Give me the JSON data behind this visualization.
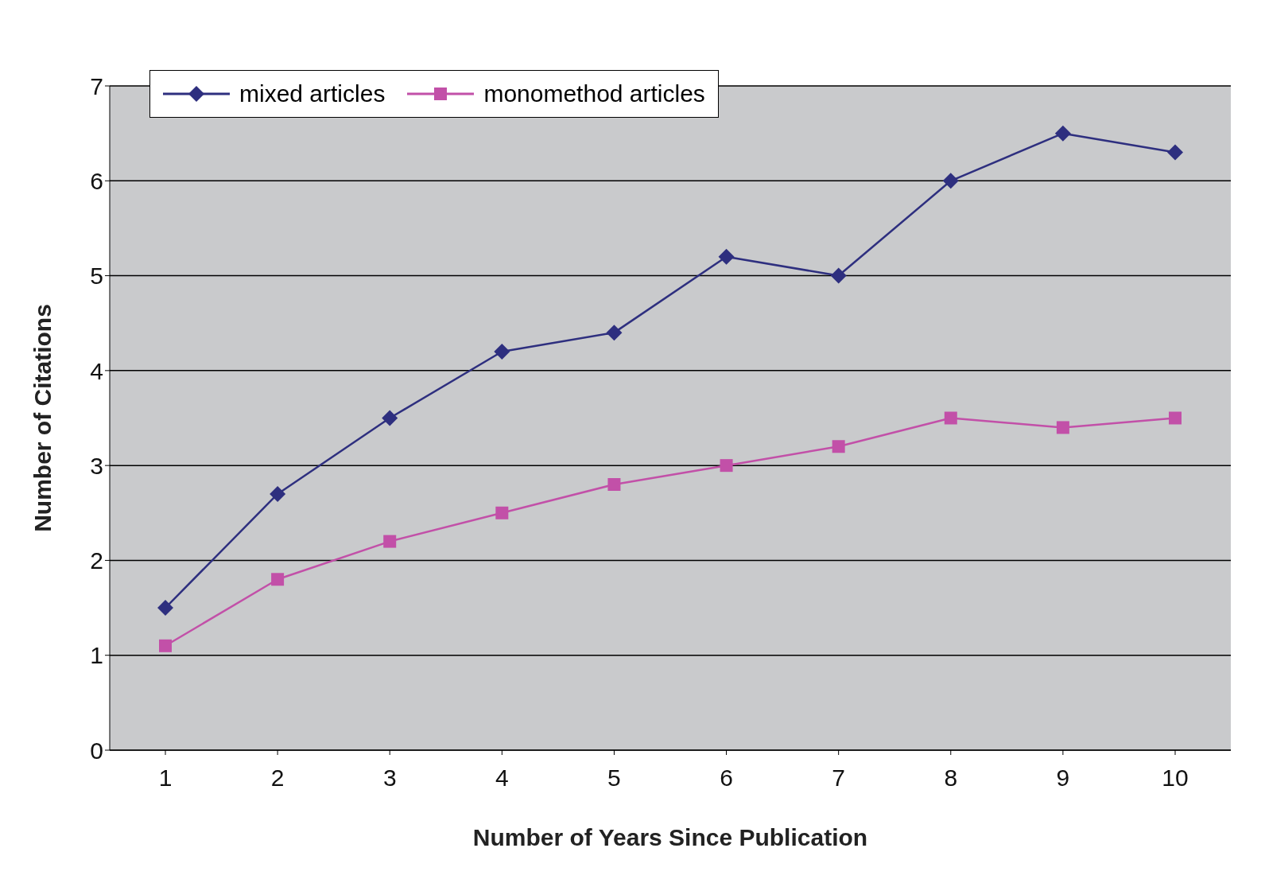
{
  "chart_data": {
    "type": "line",
    "xlabel": "Number of Years Since Publication",
    "ylabel": "Number of Citations",
    "categories": [
      "1",
      "2",
      "3",
      "4",
      "5",
      "6",
      "7",
      "8",
      "9",
      "10"
    ],
    "series": [
      {
        "name": "mixed articles",
        "color": "#2e2f7f",
        "marker": "diamond",
        "values": [
          1.5,
          2.7,
          3.5,
          4.2,
          4.4,
          5.2,
          5.0,
          6.0,
          6.5,
          6.3
        ]
      },
      {
        "name": "monomethod articles",
        "color": "#c250a8",
        "marker": "square",
        "values": [
          1.1,
          1.8,
          2.2,
          2.5,
          2.8,
          3.0,
          3.2,
          3.5,
          3.4,
          3.5
        ]
      }
    ],
    "ylim": [
      0,
      7
    ],
    "yticks": [
      0,
      1,
      2,
      3,
      4,
      5,
      6,
      7
    ],
    "grid": "y",
    "legend": "top left"
  }
}
